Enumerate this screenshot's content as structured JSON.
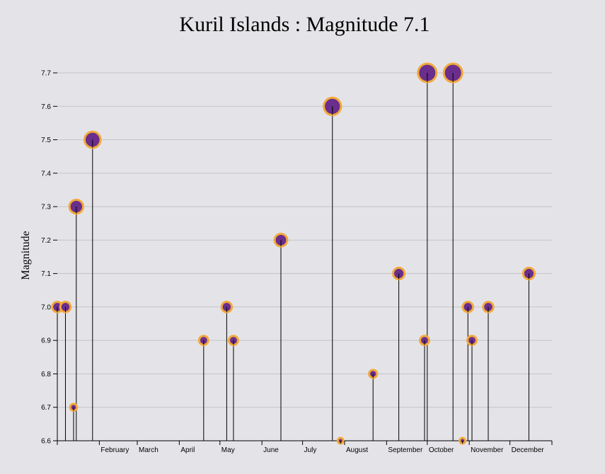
{
  "chart_data": {
    "type": "scatter",
    "title": "Kuril Islands : Magnitude 7.1",
    "ylabel": "Magnitude",
    "xlabel": "",
    "ylim": [
      6.6,
      7.7
    ],
    "y_ticks": [
      "6.6",
      "6.7",
      "6.8",
      "6.9",
      "7.0",
      "7.1",
      "7.2",
      "7.3",
      "7.4",
      "7.5",
      "7.6",
      "7.7"
    ],
    "x_ticks": [
      "February",
      "March",
      "April",
      "May",
      "June",
      "July",
      "August",
      "September",
      "October",
      "November",
      "December"
    ],
    "grid": true,
    "marker_fill": "#6a2e8c",
    "marker_stroke": "#f2a93b",
    "stem_color": "#000000",
    "grid_color": "#c4c4c8",
    "points": [
      {
        "day": 0,
        "magnitude": 7.0
      },
      {
        "day": 6,
        "magnitude": 7.0
      },
      {
        "day": 12,
        "magnitude": 6.7
      },
      {
        "day": 14,
        "magnitude": 7.3
      },
      {
        "day": 26,
        "magnitude": 7.5
      },
      {
        "day": 108,
        "magnitude": 6.9
      },
      {
        "day": 125,
        "magnitude": 7.0
      },
      {
        "day": 130,
        "magnitude": 6.9
      },
      {
        "day": 165,
        "magnitude": 7.2
      },
      {
        "day": 203,
        "magnitude": 7.6
      },
      {
        "day": 209,
        "magnitude": 6.6
      },
      {
        "day": 233,
        "magnitude": 6.8
      },
      {
        "day": 252,
        "magnitude": 7.1
      },
      {
        "day": 271,
        "magnitude": 6.9
      },
      {
        "day": 273,
        "magnitude": 7.7
      },
      {
        "day": 292,
        "magnitude": 7.7
      },
      {
        "day": 299,
        "magnitude": 6.6
      },
      {
        "day": 303,
        "magnitude": 7.0
      },
      {
        "day": 306,
        "magnitude": 6.9
      },
      {
        "day": 318,
        "magnitude": 7.0
      },
      {
        "day": 348,
        "magnitude": 7.1
      }
    ]
  }
}
